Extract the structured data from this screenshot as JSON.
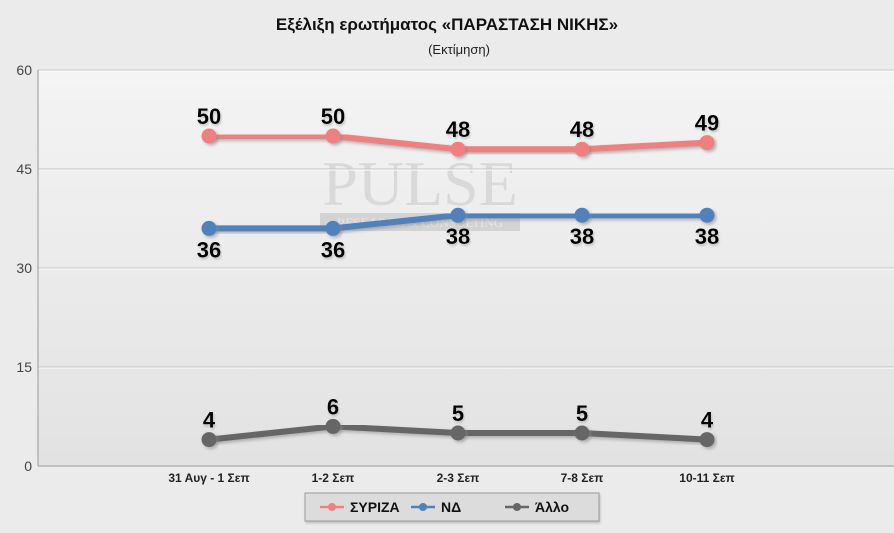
{
  "chart_data": {
    "type": "line",
    "title": "Εξέλιξη ερωτήματος «ΠΑΡΑΣΤΑΣΗ ΝΙΚΗΣ»",
    "subtitle": "(Εκτίμηση)",
    "categories": [
      "31 Αυγ - 1 Σεπ",
      "1-2 Σεπ",
      "2-3 Σεπ",
      "7-8 Σεπ",
      "10-11 Σεπ"
    ],
    "ylim": [
      0,
      60
    ],
    "yticks": [
      "0",
      "15",
      "30",
      "45",
      "60"
    ],
    "grid": true,
    "legend_position": "bottom",
    "series": [
      {
        "name": "ΣΥΡΙΖΑ",
        "color": "#f08080",
        "values": [
          50,
          50,
          48,
          48,
          49
        ],
        "labels": [
          "50",
          "50",
          "48",
          "48",
          "49"
        ],
        "label_position": "above"
      },
      {
        "name": "ΝΔ",
        "color": "#4f81bd",
        "values": [
          36,
          36,
          38,
          38,
          38
        ],
        "labels": [
          "36",
          "36",
          "38",
          "38",
          "38"
        ],
        "label_position": "below"
      },
      {
        "name": "Άλλο",
        "color": "#666666",
        "values": [
          4,
          6,
          5,
          5,
          4
        ],
        "labels": [
          "4",
          "6",
          "5",
          "5",
          "4"
        ],
        "label_position": "above"
      }
    ]
  },
  "watermark": {
    "line1": "PULSE",
    "line2": "RESEARCH & CONSULTING"
  }
}
